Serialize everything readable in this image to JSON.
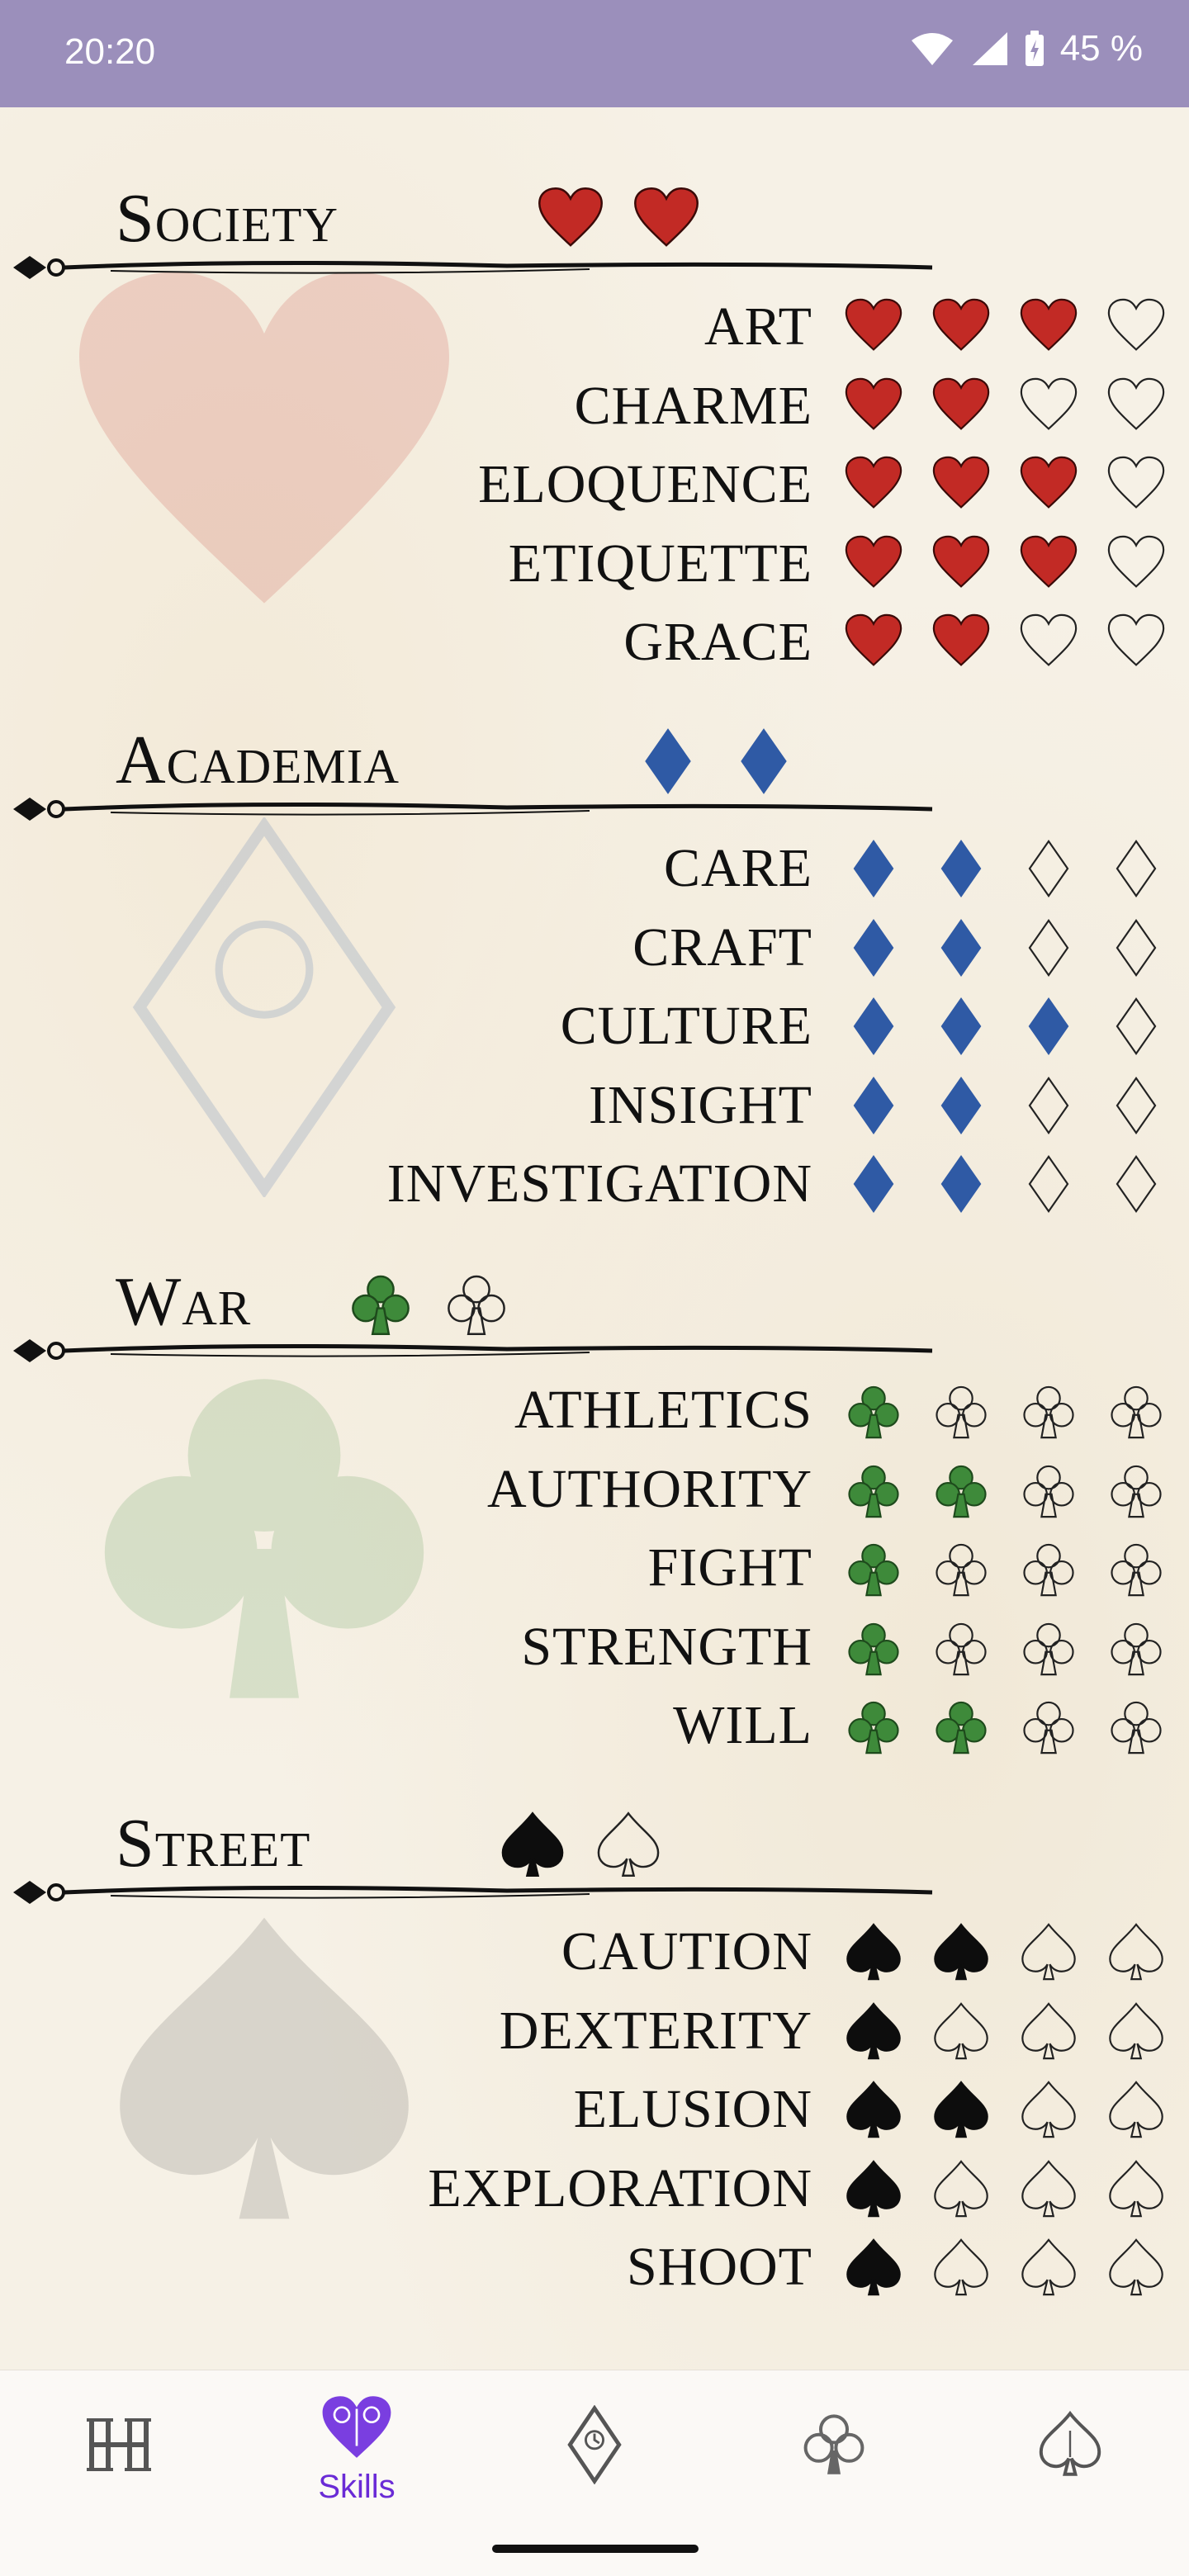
{
  "status_bar": {
    "time": "20:20",
    "battery": "45 %"
  },
  "colors": {
    "heart": "#c22a25",
    "diamond": "#2f5aa5",
    "club": "#3e8a3a",
    "spade": "#0d0d0d",
    "accent": "#6a2bd6"
  },
  "sections": [
    {
      "title": "Society",
      "suit": "heart",
      "title_suits": [
        1,
        1
      ],
      "skills": [
        {
          "name": "ART",
          "level": 3
        },
        {
          "name": "CHARME",
          "level": 2
        },
        {
          "name": "ELOQUENCE",
          "level": 3
        },
        {
          "name": "ETIQUETTE",
          "level": 3
        },
        {
          "name": "GRACE",
          "level": 2
        }
      ]
    },
    {
      "title": "Academia",
      "suit": "diamond",
      "title_suits": [
        1,
        1
      ],
      "skills": [
        {
          "name": "CARE",
          "level": 2
        },
        {
          "name": "CRAFT",
          "level": 2
        },
        {
          "name": "CULTURE",
          "level": 3
        },
        {
          "name": "INSIGHT",
          "level": 2
        },
        {
          "name": "INVESTIGATION",
          "level": 2
        }
      ]
    },
    {
      "title": "War",
      "suit": "club",
      "title_suits": [
        1,
        0
      ],
      "skills": [
        {
          "name": "ATHLETICS",
          "level": 1
        },
        {
          "name": "AUTHORITY",
          "level": 2
        },
        {
          "name": "FIGHT",
          "level": 1
        },
        {
          "name": "STRENGTH",
          "level": 1
        },
        {
          "name": "WILL",
          "level": 2
        }
      ]
    },
    {
      "title": "Street",
      "suit": "spade",
      "title_suits": [
        1,
        0
      ],
      "skills": [
        {
          "name": "CAUTION",
          "level": 2
        },
        {
          "name": "DEXTERITY",
          "level": 1
        },
        {
          "name": "ELUSION",
          "level": 2
        },
        {
          "name": "EXPLORATION",
          "level": 1
        },
        {
          "name": "SHOOT",
          "level": 1
        }
      ]
    }
  ],
  "max_level": 4,
  "nav": {
    "items": [
      {
        "icon": "hh-monogram-icon",
        "label": ""
      },
      {
        "icon": "heart-ornament-icon",
        "label": "Skills",
        "active": true
      },
      {
        "icon": "diamond-clock-icon",
        "label": ""
      },
      {
        "icon": "club-ornament-icon",
        "label": ""
      },
      {
        "icon": "spade-ornament-icon",
        "label": ""
      }
    ]
  }
}
